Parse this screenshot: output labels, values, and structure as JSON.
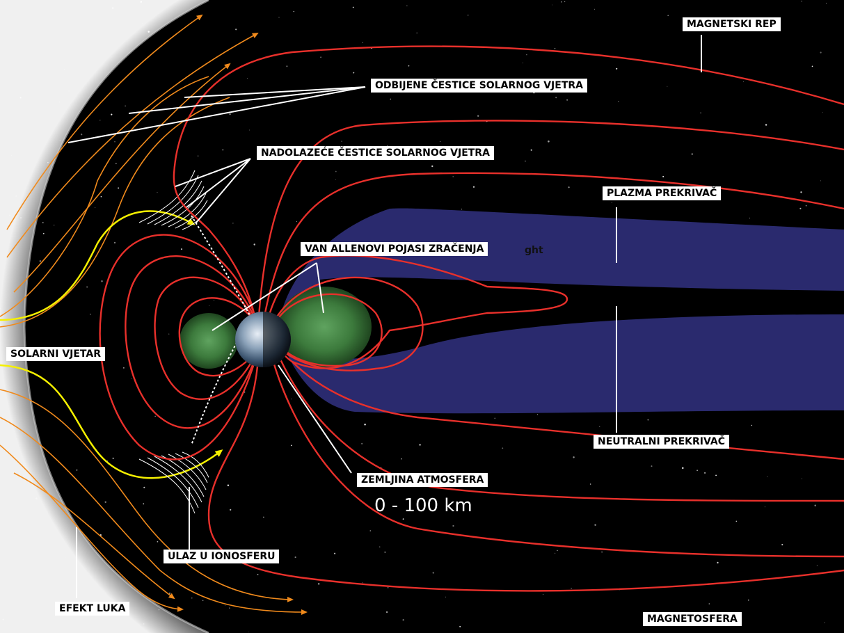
{
  "diagram": {
    "labels": {
      "magnetotail": "MAGNETSKI REP",
      "deflected": "ODBIJENE ČESTICE SOLARNOG VJETRA",
      "incoming": "NADOLAZEĆE ČESTICE SOLARNOG VJETRA",
      "plasma_sheet": "PLAZMA PREKRIVAČ",
      "van_allen": "VAN ALLENOVI POJASI ZRAČENJA",
      "solar_wind": "SOLARNI VJETAR",
      "neutral_sheet": "NEUTRALNI PREKRIVAČ",
      "atmosphere": "ZEMLJINA ATMOSFERA",
      "atmosphere_range": "0 - 100 km",
      "ionosphere": "ULAZ U IONOSFERU",
      "bow_shock": "EFEKT LUKA",
      "magnetosphere": "MAGNETOSFERA",
      "stray_fragment": "ght"
    },
    "colors": {
      "space": "#000000",
      "field_lines": "#e8302b",
      "solar_wind_lines": "#f08a1c",
      "solar_wind_highlight": "#f5f000",
      "plasma_sheet": "#2a2a6e",
      "van_allen_belts": "#3c7a3c",
      "bow_shock_glow": "#d8d8d8",
      "pointer_lines": "#ffffff"
    }
  }
}
